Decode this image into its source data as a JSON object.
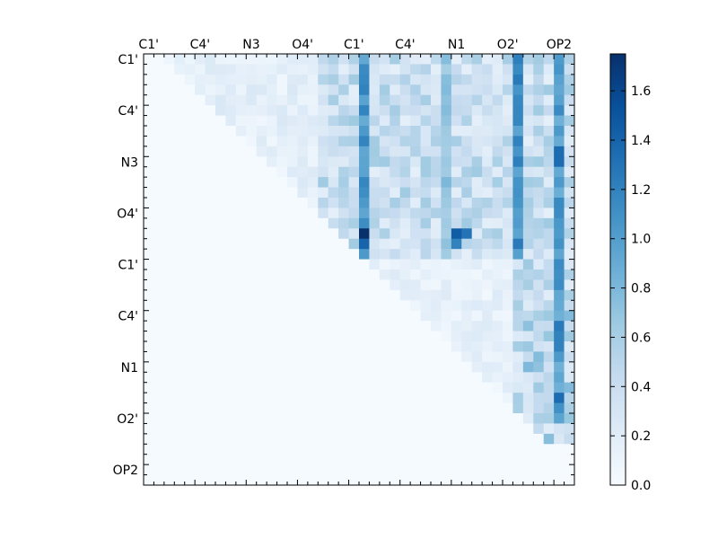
{
  "chart_data": {
    "type": "heatmap",
    "title": "",
    "xlabel": "",
    "ylabel": "",
    "n": 42,
    "x_tick_labels": [
      "C1'",
      "C4'",
      "N3",
      "O4'",
      "C1'",
      "C4'",
      "N1",
      "O2'",
      "OP2"
    ],
    "y_tick_labels": [
      "C1'",
      "C4'",
      "N3",
      "O4'",
      "C1'",
      "C4'",
      "N1",
      "O2'",
      "OP2"
    ],
    "label_tick_index": [
      0,
      5,
      10,
      15,
      20,
      25,
      30,
      35,
      40
    ],
    "colorbar": {
      "range": [
        0.0,
        1.75
      ],
      "ticks": [
        "0.0",
        "0.2",
        "0.4",
        "0.6",
        "0.8",
        "1.0",
        "1.2",
        "1.4",
        "1.6"
      ],
      "colormap": "Blues"
    },
    "background_value": 0.02,
    "strong_columns": [
      {
        "col": 21,
        "from_row": 0,
        "to_row": 19,
        "value": 1.05
      },
      {
        "col": 36,
        "from_row": 0,
        "to_row": 19,
        "value": 1.1
      },
      {
        "col": 40,
        "from_row": 0,
        "to_row": 35,
        "value": 1.0
      },
      {
        "col": 29,
        "from_row": 0,
        "to_row": 19,
        "value": 0.7
      }
    ],
    "hotspots": [
      {
        "row": 17,
        "col": 21,
        "value": 1.75
      },
      {
        "row": 18,
        "col": 21,
        "value": 1.4
      },
      {
        "row": 17,
        "col": 30,
        "value": 1.45
      },
      {
        "row": 17,
        "col": 31,
        "value": 1.3
      },
      {
        "row": 18,
        "col": 30,
        "value": 1.2
      },
      {
        "row": 9,
        "col": 40,
        "value": 1.35
      },
      {
        "row": 10,
        "col": 40,
        "value": 1.35
      },
      {
        "row": 26,
        "col": 40,
        "value": 1.25
      },
      {
        "row": 28,
        "col": 40,
        "value": 1.2
      },
      {
        "row": 33,
        "col": 40,
        "value": 1.35
      },
      {
        "row": 27,
        "col": 40,
        "value": 1.2
      },
      {
        "row": 34,
        "col": 40,
        "value": 1.1
      }
    ]
  }
}
